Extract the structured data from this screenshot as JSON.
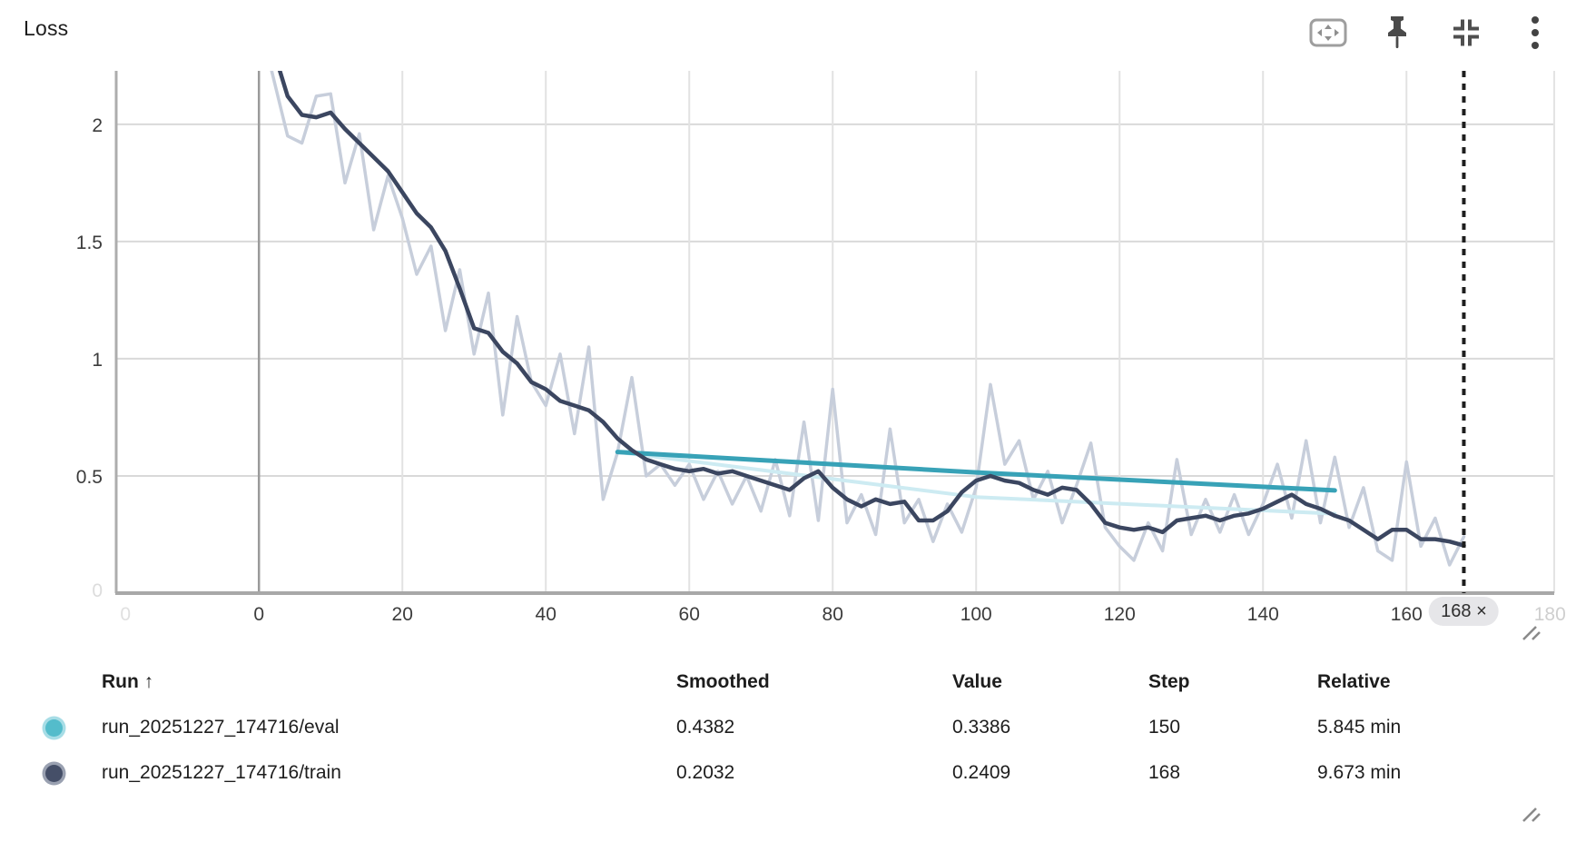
{
  "panel": {
    "title": "Loss"
  },
  "toolbar": {
    "icons": [
      "pan-zoom",
      "pin",
      "collapse",
      "overflow-menu"
    ]
  },
  "chart_data": {
    "type": "line",
    "title": "Loss",
    "grid": true,
    "legend_position": "bottom-table",
    "x_axis": {
      "min": -19.9,
      "max": 180.6,
      "ticks": [
        0,
        20,
        40,
        60,
        80,
        100,
        120,
        140,
        160
      ],
      "faded_ticks": [
        {
          "value": -18.6,
          "label": "0"
        },
        {
          "value": 180,
          "label": "180"
        }
      ]
    },
    "y_axis": {
      "min": 0,
      "max": 2.228,
      "ticks": [
        {
          "value": 2,
          "label": "2"
        },
        {
          "value": 1.5,
          "label": "1.5"
        },
        {
          "value": 1,
          "label": "1"
        },
        {
          "value": 0.5,
          "label": "0.5"
        }
      ],
      "faded_ticks": [
        {
          "value": 0,
          "label": "0"
        }
      ]
    },
    "step_marker": {
      "value": 168,
      "label": "168 ×"
    },
    "series": [
      {
        "name": "train-raw",
        "run": "run_20251227_174716/train",
        "kind": "raw",
        "color": "#c7cedb",
        "width": 3.5,
        "x": [
          0,
          2,
          4,
          6,
          8,
          10,
          12,
          14,
          16,
          18,
          20,
          22,
          24,
          26,
          28,
          30,
          32,
          34,
          36,
          38,
          40,
          42,
          44,
          46,
          48,
          50,
          52,
          54,
          56,
          58,
          60,
          62,
          64,
          66,
          68,
          70,
          72,
          74,
          76,
          78,
          80,
          82,
          84,
          86,
          88,
          90,
          92,
          94,
          96,
          98,
          100,
          102,
          104,
          106,
          108,
          110,
          112,
          114,
          116,
          118,
          120,
          122,
          124,
          126,
          128,
          130,
          132,
          134,
          136,
          138,
          140,
          142,
          144,
          146,
          148,
          150,
          152,
          154,
          156,
          158,
          160,
          162,
          164,
          166,
          168
        ],
        "y": [
          2.45,
          2.2,
          1.95,
          1.92,
          2.12,
          2.13,
          1.75,
          1.96,
          1.55,
          1.78,
          1.6,
          1.36,
          1.48,
          1.12,
          1.38,
          1.02,
          1.28,
          0.76,
          1.18,
          0.9,
          0.8,
          1.02,
          0.68,
          1.05,
          0.4,
          0.6,
          0.92,
          0.5,
          0.55,
          0.46,
          0.55,
          0.4,
          0.52,
          0.38,
          0.5,
          0.35,
          0.57,
          0.33,
          0.73,
          0.31,
          0.87,
          0.3,
          0.42,
          0.25,
          0.7,
          0.3,
          0.4,
          0.22,
          0.38,
          0.26,
          0.45,
          0.89,
          0.55,
          0.65,
          0.4,
          0.52,
          0.3,
          0.46,
          0.64,
          0.28,
          0.2,
          0.14,
          0.3,
          0.18,
          0.57,
          0.25,
          0.4,
          0.26,
          0.42,
          0.25,
          0.38,
          0.55,
          0.32,
          0.65,
          0.3,
          0.58,
          0.28,
          0.45,
          0.18,
          0.14,
          0.56,
          0.2,
          0.32,
          0.12,
          0.2409
        ]
      },
      {
        "name": "eval-raw",
        "run": "run_20251227_174716/eval",
        "kind": "raw",
        "color": "#cdebf2",
        "width": 4,
        "x": [
          50,
          100,
          150
        ],
        "y": [
          0.602,
          0.41,
          0.3386
        ]
      },
      {
        "name": "eval-smoothed",
        "run": "run_20251227_174716/eval",
        "kind": "smoothed",
        "color": "#38a2b7",
        "width": 5,
        "x": [
          50,
          100,
          150
        ],
        "y": [
          0.602,
          0.515,
          0.4382
        ]
      },
      {
        "name": "train-smoothed",
        "run": "run_20251227_174716/train",
        "kind": "smoothed",
        "color": "#3b4660",
        "width": 4.5,
        "x": [
          0,
          2,
          4,
          6,
          8,
          10,
          12,
          14,
          16,
          18,
          20,
          22,
          24,
          26,
          28,
          30,
          32,
          34,
          36,
          38,
          40,
          42,
          44,
          46,
          48,
          50,
          52,
          54,
          56,
          58,
          60,
          62,
          64,
          66,
          68,
          70,
          72,
          74,
          76,
          78,
          80,
          82,
          84,
          86,
          88,
          90,
          92,
          94,
          96,
          98,
          100,
          102,
          104,
          106,
          108,
          110,
          112,
          114,
          116,
          118,
          120,
          122,
          124,
          126,
          128,
          130,
          132,
          134,
          136,
          138,
          140,
          142,
          144,
          146,
          148,
          150,
          152,
          154,
          156,
          158,
          160,
          162,
          164,
          166,
          168
        ],
        "y": [
          2.5,
          2.32,
          2.12,
          2.04,
          2.03,
          2.05,
          1.98,
          1.92,
          1.86,
          1.8,
          1.71,
          1.62,
          1.56,
          1.46,
          1.3,
          1.13,
          1.11,
          1.03,
          0.98,
          0.9,
          0.87,
          0.82,
          0.8,
          0.78,
          0.73,
          0.66,
          0.61,
          0.57,
          0.55,
          0.53,
          0.52,
          0.53,
          0.51,
          0.52,
          0.5,
          0.48,
          0.46,
          0.44,
          0.49,
          0.52,
          0.45,
          0.4,
          0.37,
          0.4,
          0.38,
          0.39,
          0.31,
          0.31,
          0.35,
          0.43,
          0.48,
          0.5,
          0.48,
          0.47,
          0.44,
          0.42,
          0.45,
          0.44,
          0.38,
          0.3,
          0.28,
          0.27,
          0.28,
          0.26,
          0.31,
          0.32,
          0.33,
          0.31,
          0.33,
          0.34,
          0.36,
          0.39,
          0.42,
          0.38,
          0.36,
          0.33,
          0.31,
          0.27,
          0.23,
          0.27,
          0.27,
          0.23,
          0.23,
          0.22,
          0.2032
        ]
      }
    ]
  },
  "legend_table": {
    "columns": [
      "Run ↑",
      "Smoothed",
      "Value",
      "Step",
      "Relative"
    ],
    "rows": [
      {
        "run": "run_20251227_174716/eval",
        "dot_color": "#54bccb",
        "ring_color": "#a7dde6",
        "smoothed": "0.4382",
        "value": "0.3386",
        "step": "150",
        "relative": "5.845 min"
      },
      {
        "run": "run_20251227_174716/train",
        "dot_color": "#454f68",
        "ring_color": "#9aa1b1",
        "smoothed": "0.2032",
        "value": "0.2409",
        "step": "168",
        "relative": "9.673 min"
      }
    ]
  }
}
